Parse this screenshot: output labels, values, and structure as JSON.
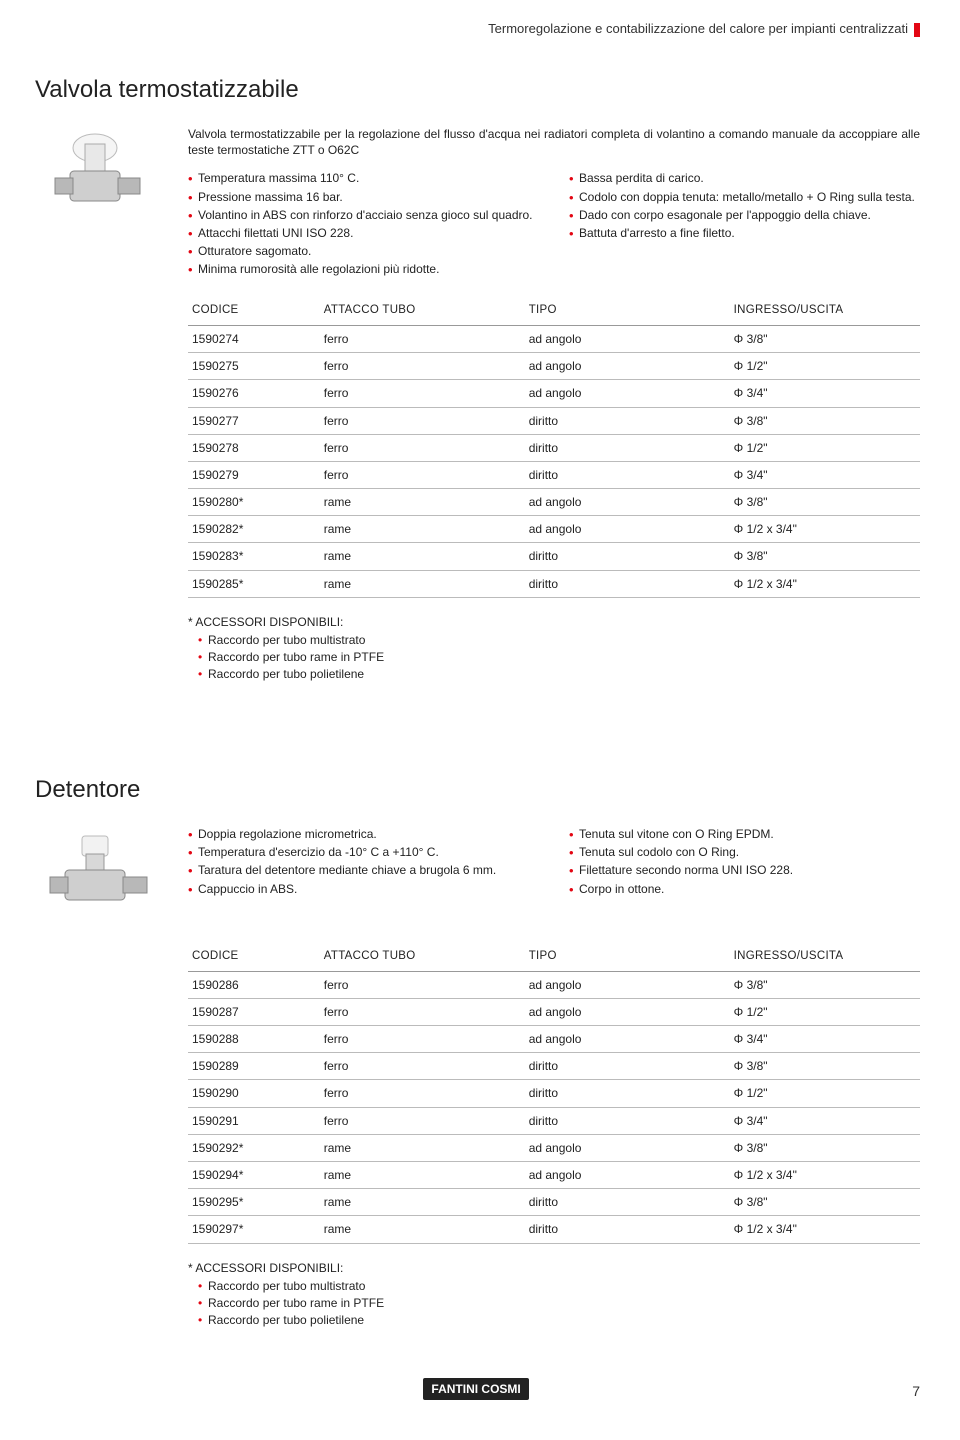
{
  "header": {
    "title": "Termoregolazione e contabilizzazione del calore per impianti centralizzati"
  },
  "section1": {
    "title": "Valvola termostatizzabile",
    "intro": "Valvola termostatizzabile per la regolazione del flusso d'acqua nei radiatori completa di volantino a comando manuale da accoppiare alle teste termostatiche ZTT o O62C",
    "left_bullets": [
      "Temperatura massima 110° C.",
      "Pressione massima 16 bar.",
      "Volantino in ABS con rinforzo d'acciaio senza gioco sul quadro.",
      "Attacchi filettati UNI ISO 228.",
      "Otturatore sagomato.",
      "Minima rumorosità alle regolazioni più ridotte."
    ],
    "right_bullets": [
      "Bassa perdita di carico.",
      "Codolo con doppia tenuta: metallo/metallo + O Ring sulla testa.",
      "Dado con corpo esagonale per l'appoggio della chiave.",
      "Battuta d'arresto a fine filetto."
    ],
    "table": {
      "columns": [
        "CODICE",
        "ATTACCO TUBO",
        "TIPO",
        "INGRESSO/USCITA"
      ],
      "rows": [
        [
          "1590274",
          "ferro",
          "ad angolo",
          "Φ 3/8\""
        ],
        [
          "1590275",
          "ferro",
          "ad angolo",
          "Φ 1/2\""
        ],
        [
          "1590276",
          "ferro",
          "ad angolo",
          "Φ 3/4\""
        ],
        [
          "1590277",
          "ferro",
          "diritto",
          "Φ 3/8\""
        ],
        [
          "1590278",
          "ferro",
          "diritto",
          "Φ 1/2\""
        ],
        [
          "1590279",
          "ferro",
          "diritto",
          "Φ 3/4\""
        ],
        [
          "1590280*",
          "rame",
          "ad angolo",
          "Φ 3/8\""
        ],
        [
          "1590282*",
          "rame",
          "ad angolo",
          "Φ 1/2 x 3/4\""
        ],
        [
          "1590283*",
          "rame",
          "diritto",
          "Φ 3/8\""
        ],
        [
          "1590285*",
          "rame",
          "diritto",
          "Φ 1/2 x 3/4\""
        ]
      ]
    },
    "accessori_title": "* ACCESSORI DISPONIBILI:",
    "accessori": [
      "Raccordo per tubo multistrato",
      "Raccordo per tubo rame in PTFE",
      "Raccordo per tubo polietilene"
    ]
  },
  "section2": {
    "title": "Detentore",
    "left_bullets": [
      "Doppia regolazione micrometrica.",
      "Temperatura d'esercizio da -10° C a +110° C.",
      "Taratura del detentore mediante chiave a brugola 6 mm.",
      "Cappuccio in ABS."
    ],
    "right_bullets": [
      "Tenuta sul vitone con O Ring EPDM.",
      "Tenuta sul codolo con O Ring.",
      "Filettature secondo norma UNI ISO 228.",
      "Corpo in ottone."
    ],
    "table": {
      "columns": [
        "CODICE",
        "ATTACCO TUBO",
        "TIPO",
        "INGRESSO/USCITA"
      ],
      "rows": [
        [
          "1590286",
          "ferro",
          "ad angolo",
          "Φ 3/8\""
        ],
        [
          "1590287",
          "ferro",
          "ad angolo",
          "Φ 1/2\""
        ],
        [
          "1590288",
          "ferro",
          "ad angolo",
          "Φ 3/4\""
        ],
        [
          "1590289",
          "ferro",
          "diritto",
          "Φ 3/8\""
        ],
        [
          "1590290",
          "ferro",
          "diritto",
          "Φ 1/2\""
        ],
        [
          "1590291",
          "ferro",
          "diritto",
          "Φ 3/4\""
        ],
        [
          "1590292*",
          "rame",
          "ad angolo",
          "Φ 3/8\""
        ],
        [
          "1590294*",
          "rame",
          "ad angolo",
          "Φ 1/2 x 3/4\""
        ],
        [
          "1590295*",
          "rame",
          "diritto",
          "Φ 3/8\""
        ],
        [
          "1590297*",
          "rame",
          "diritto",
          "Φ 1/2 x 3/4\""
        ]
      ]
    },
    "accessori_title": "* ACCESSORI DISPONIBILI:",
    "accessori": [
      "Raccordo per tubo multistrato",
      "Raccordo per tubo rame in PTFE",
      "Raccordo per tubo polietilene"
    ]
  },
  "footer": {
    "logo": "FANTINI COSMI",
    "page": "7"
  },
  "col_widths": [
    "18%",
    "28%",
    "28%",
    "26%"
  ]
}
